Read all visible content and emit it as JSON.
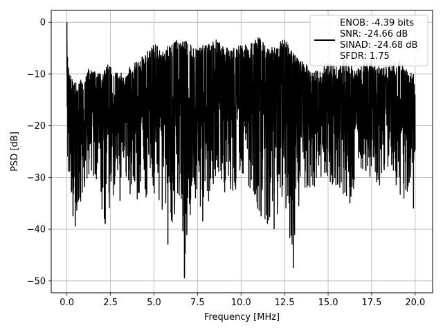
{
  "chart_data": {
    "type": "line",
    "title": "",
    "xlabel": "Frequency [MHz]",
    "ylabel": "PSD [dB]",
    "xlim": [
      -0.9,
      21.0
    ],
    "ylim": [
      -52.3,
      2.3
    ],
    "xticks": [
      0.0,
      2.5,
      5.0,
      7.5,
      10.0,
      12.5,
      15.0,
      17.5,
      20.0
    ],
    "xtick_labels": [
      "0.0",
      "2.5",
      "5.0",
      "7.5",
      "10.0",
      "12.5",
      "15.0",
      "17.5",
      "20.0"
    ],
    "yticks": [
      0,
      -10,
      -20,
      -30,
      -40,
      -50
    ],
    "ytick_labels": [
      "0",
      "−10",
      "−20",
      "−30",
      "−40",
      "−50"
    ],
    "grid": true,
    "legend_position": "top-right",
    "legend_lines": [
      "ENOB: -4.39 bits",
      "SNR: -24.66 dB",
      "SINAD: -24.68 dB",
      "SFDR: 1.75"
    ],
    "series_color": "#000000",
    "series": [
      {
        "x_range": [
          0.0,
          20.0
        ],
        "upper_envelope": [
          [
            0.0,
            0.0
          ],
          [
            0.05,
            -8.0
          ],
          [
            0.2,
            -10.0
          ],
          [
            0.5,
            -11.5
          ],
          [
            1.0,
            -11.0
          ],
          [
            1.2,
            -9.0
          ],
          [
            2.0,
            -10.0
          ],
          [
            2.3,
            -8.0
          ],
          [
            3.0,
            -10.0
          ],
          [
            3.5,
            -9.0
          ],
          [
            4.2,
            -7.0
          ],
          [
            4.6,
            -5.0
          ],
          [
            5.0,
            -4.0
          ],
          [
            5.5,
            -5.5
          ],
          [
            6.0,
            -4.0
          ],
          [
            6.5,
            -3.0
          ],
          [
            7.0,
            -4.0
          ],
          [
            7.5,
            -5.0
          ],
          [
            8.0,
            -4.0
          ],
          [
            8.5,
            -3.0
          ],
          [
            9.0,
            -4.5
          ],
          [
            9.5,
            -5.0
          ],
          [
            10.0,
            -4.0
          ],
          [
            10.5,
            -4.5
          ],
          [
            11.0,
            -2.5
          ],
          [
            11.5,
            -5.0
          ],
          [
            12.0,
            -4.5
          ],
          [
            12.5,
            -3.0
          ],
          [
            13.0,
            -6.0
          ],
          [
            13.5,
            -7.5
          ],
          [
            14.0,
            -9.0
          ],
          [
            14.5,
            -9.5
          ],
          [
            15.0,
            -7.5
          ],
          [
            15.5,
            -8.5
          ],
          [
            16.0,
            -7.0
          ],
          [
            16.5,
            -9.0
          ],
          [
            17.0,
            -8.0
          ],
          [
            17.5,
            -6.5
          ],
          [
            18.0,
            -9.0
          ],
          [
            18.5,
            -8.5
          ],
          [
            19.0,
            -7.0
          ],
          [
            19.5,
            -9.0
          ],
          [
            20.0,
            -9.5
          ]
        ],
        "lower_envelope": [
          [
            0.0,
            -22.0
          ],
          [
            0.1,
            -32.0
          ],
          [
            0.3,
            -37.5
          ],
          [
            0.5,
            -39.5
          ],
          [
            1.0,
            -32.0
          ],
          [
            1.5,
            -30.0
          ],
          [
            2.2,
            -39.0
          ],
          [
            3.0,
            -30.5
          ],
          [
            4.0,
            -35.0
          ],
          [
            5.0,
            -33.0
          ],
          [
            5.8,
            -43.0
          ],
          [
            6.5,
            -33.0
          ],
          [
            6.75,
            -49.5
          ],
          [
            7.2,
            -33.0
          ],
          [
            7.8,
            -38.0
          ],
          [
            8.5,
            -32.0
          ],
          [
            9.3,
            -34.0
          ],
          [
            10.0,
            -31.0
          ],
          [
            11.0,
            -37.0
          ],
          [
            11.8,
            -40.0
          ],
          [
            12.5,
            -34.0
          ],
          [
            13.0,
            -47.5
          ],
          [
            13.5,
            -32.0
          ],
          [
            14.0,
            -33.0
          ],
          [
            14.7,
            -30.0
          ],
          [
            15.5,
            -32.0
          ],
          [
            16.2,
            -35.0
          ],
          [
            17.0,
            -29.0
          ],
          [
            18.0,
            -32.0
          ],
          [
            18.5,
            -31.0
          ],
          [
            19.5,
            -36.0
          ],
          [
            20.0,
            -25.0
          ]
        ],
        "spikes": [
          [
            0.0,
            0.0
          ],
          [
            0.35,
            -37.5
          ],
          [
            0.48,
            -39.5
          ],
          [
            2.2,
            -39.0
          ],
          [
            2.15,
            -38.0
          ],
          [
            3.05,
            -34.5
          ],
          [
            4.15,
            -33.0
          ],
          [
            5.8,
            -43.0
          ],
          [
            6.75,
            -49.5
          ],
          [
            7.8,
            -38.5
          ],
          [
            11.15,
            -37.5
          ],
          [
            11.9,
            -40.0
          ],
          [
            13.0,
            -47.5
          ],
          [
            16.25,
            -35.0
          ],
          [
            19.9,
            -36.0
          ]
        ]
      }
    ]
  }
}
